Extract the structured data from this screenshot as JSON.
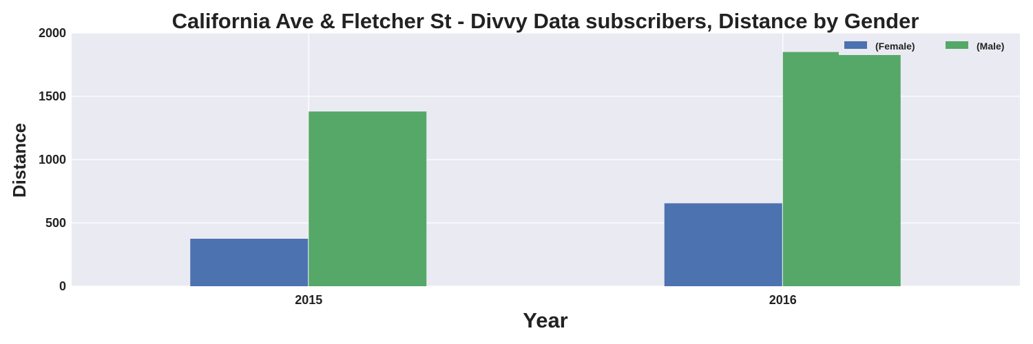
{
  "chart_data": {
    "type": "bar",
    "title": "California Ave & Fletcher St - Divvy Data subscribers, Distance by Gender",
    "xlabel": "Year",
    "ylabel": "Distance",
    "categories": [
      "2015",
      "2016"
    ],
    "series": [
      {
        "name": "(Female)",
        "values": [
          375,
          655
        ],
        "color": "#4c72b0"
      },
      {
        "name": "(Male)",
        "values": [
          1380,
          1850
        ],
        "color": "#55a868"
      }
    ],
    "ylim": [
      0,
      2000
    ],
    "yticks": [
      0,
      500,
      1000,
      1500,
      2000
    ],
    "grid": true,
    "legend": "top-right",
    "background": "#eaeaf2"
  }
}
